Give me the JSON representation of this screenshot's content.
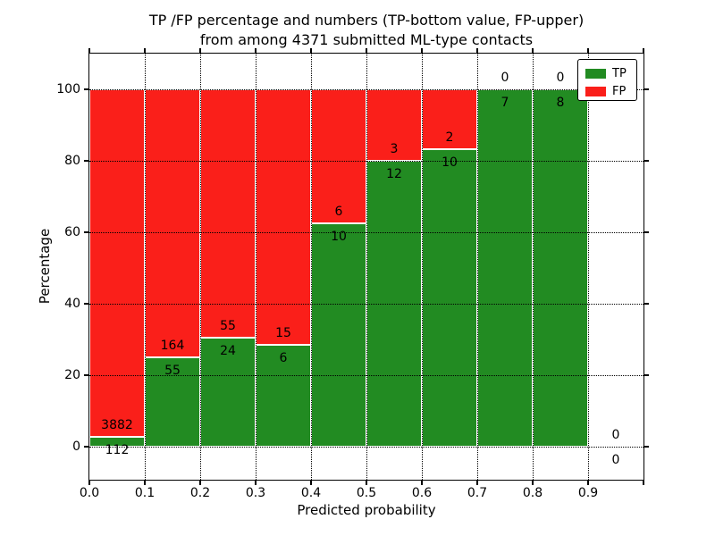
{
  "figure": {
    "title_line1": "TP /FP percentage and numbers (TP-bottom value, FP-upper)",
    "title_line2": "from among 4371 submitted ML-type contacts"
  },
  "axes": {
    "xlabel": "Predicted probability",
    "ylabel": "Percentage"
  },
  "legend": {
    "position": "upper-right",
    "items": [
      {
        "label": "TP",
        "color": "#228b22"
      },
      {
        "label": "FP",
        "color": "#fa1f1a"
      }
    ]
  },
  "chart_data": {
    "type": "bar",
    "stacked": true,
    "title": "TP /FP percentage and numbers (TP-bottom value, FP-upper) from among 4371 submitted ML-type contacts",
    "xlabel": "Predicted probability",
    "ylabel": "Percentage",
    "grid": true,
    "xlim": [
      0.0,
      1.0
    ],
    "ylim": [
      -10,
      110
    ],
    "bin_edges": [
      0.0,
      0.1,
      0.2,
      0.3,
      0.4,
      0.5,
      0.6,
      0.7,
      0.8,
      0.9,
      1.0
    ],
    "xtick_labels": [
      "0.0",
      "0.1",
      "0.2",
      "0.3",
      "0.4",
      "0.5",
      "0.6",
      "0.7",
      "0.8",
      "0.9"
    ],
    "ytick_values": [
      0,
      20,
      40,
      60,
      80,
      100
    ],
    "series": [
      {
        "name": "TP",
        "color": "#228b22",
        "counts": [
          112,
          55,
          24,
          6,
          10,
          12,
          10,
          7,
          8,
          0
        ]
      },
      {
        "name": "FP",
        "color": "#fa1f1a",
        "counts": [
          3882,
          164,
          55,
          15,
          6,
          3,
          2,
          0,
          0,
          0
        ]
      }
    ],
    "tp_percent": [
      2.8,
      25.1,
      30.4,
      28.6,
      62.5,
      80.0,
      83.3,
      100.0,
      100.0,
      0.0
    ]
  }
}
